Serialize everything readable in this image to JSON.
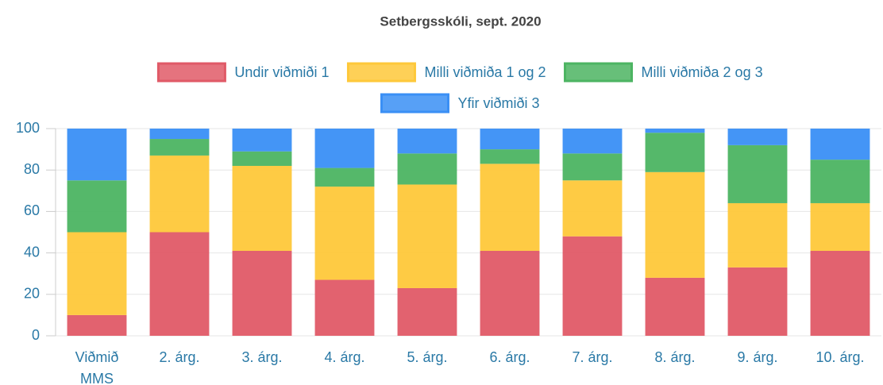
{
  "chart_data": {
    "type": "stacked_bar",
    "title": "Setbergsskóli, sept. 2020",
    "categories": [
      [
        "Viðmið",
        "MMS"
      ],
      "2. árg.",
      "3. árg.",
      "4. árg.",
      "5. árg.",
      "6. árg.",
      "7. árg.",
      "8. árg.",
      "9. árg.",
      "10. árg."
    ],
    "series": [
      {
        "name": "Undir viðmiði 1",
        "color": "#e05a67",
        "values": [
          10,
          50,
          41,
          27,
          23,
          41,
          48,
          28,
          33,
          41
        ]
      },
      {
        "name": "Milli viðmiða 1 og 2",
        "color": "#fec83a",
        "values": [
          40,
          37,
          41,
          45,
          50,
          42,
          27,
          51,
          31,
          23
        ]
      },
      {
        "name": "Milli viðmiða 2 og 3",
        "color": "#4cb462",
        "values": [
          25,
          8,
          7,
          9,
          15,
          7,
          13,
          19,
          28,
          21
        ]
      },
      {
        "name": "Yfir viðmiði 3",
        "color": "#3a8ff5",
        "values": [
          25,
          5,
          11,
          19,
          12,
          10,
          12,
          2,
          8,
          15
        ]
      }
    ],
    "ylim": [
      0,
      100
    ],
    "yticks": [
      0,
      20,
      40,
      60,
      80,
      100
    ],
    "grid": true,
    "legend": "top"
  }
}
